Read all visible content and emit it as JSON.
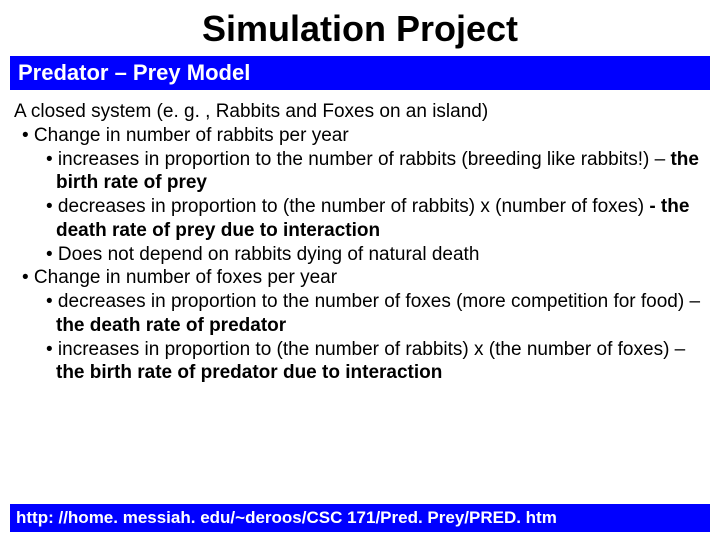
{
  "title": "Simulation Project",
  "banner": "Predator – Prey Model",
  "intro": "A closed system (e. g. , Rabbits and Foxes on an island)",
  "s1": "• Change in number of rabbits per year",
  "s1a_pre": "• increases in proportion to the number of rabbits (breeding like rabbits!) – ",
  "s1a_bold": "the birth rate of prey",
  "s1b_pre": "• decreases in proportion to (the number of rabbits) x (number of foxes) ",
  "s1b_bold": "- the death rate of prey due to interaction",
  "s1c": "• Does not depend on rabbits dying of natural death",
  "s2": "• Change in number of foxes per year",
  "s2a_pre": "• decreases in proportion to the number of foxes (more competition for food) – ",
  "s2a_bold": "the death rate of predator",
  "s2b_pre": "• increases in proportion to (the number of rabbits) x (the number of foxes) – ",
  "s2b_bold": "the birth rate of predator due to interaction",
  "footer": "http: //home. messiah. edu/~deroos/CSC 171/Pred. Prey/PRED. htm"
}
